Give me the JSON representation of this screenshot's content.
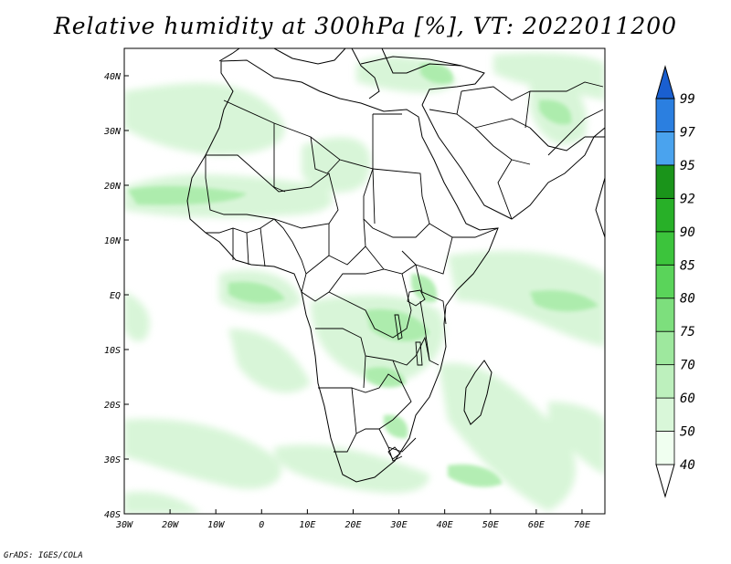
{
  "title": "Relative humidity at 300hPa [%], VT: 2022011200",
  "credit": "GrADS: IGES/COLA",
  "map": {
    "lon_range": [
      -30,
      75
    ],
    "lat_range": [
      -40,
      45
    ],
    "x_ticks": [
      "30W",
      "20W",
      "10W",
      "0",
      "10E",
      "20E",
      "30E",
      "40E",
      "50E",
      "60E",
      "70E"
    ],
    "y_ticks": [
      "40N",
      "30N",
      "20N",
      "10N",
      "EQ",
      "10S",
      "20S",
      "30S",
      "40S"
    ]
  },
  "colorbar": {
    "levels": [
      "40",
      "50",
      "60",
      "70",
      "75",
      "80",
      "85",
      "90",
      "92",
      "95",
      "97",
      "99"
    ],
    "colors": [
      "#f0fff0",
      "#d9f7d9",
      "#bdf0bd",
      "#9ee89e",
      "#7ddf7d",
      "#5ad45a",
      "#3cc43c",
      "#28b028",
      "#1a941a",
      "#4aa3ee",
      "#2b7fe0",
      "#1a5fd0"
    ]
  }
}
